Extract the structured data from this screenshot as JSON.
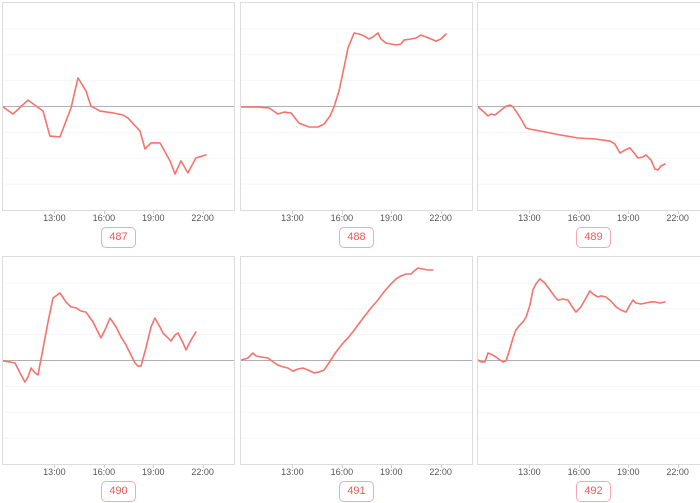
{
  "page": {
    "background": "#ffffff"
  },
  "styles": {
    "line_color": "#f4736d",
    "baseline_color": "#b0b0b0",
    "gridline_color": "#f5f5f5",
    "panel_border_color": "#dcdcdc",
    "tick_mark_color": "#cfcfcf",
    "tick_text_color": "#575353",
    "tag_text_color": "#e85d5d",
    "tag_border_color": "#f4a7b4"
  },
  "x_axis": {
    "tick_labels": [
      "13:00",
      "16:00",
      "19:00",
      "22:00"
    ],
    "tick_hours": [
      13,
      16,
      19,
      22
    ],
    "hour13_x_pct": 22.5,
    "pct_per_hour": 7.07
  },
  "layout_hints": {
    "grid": "2 rows x 3 columns of sparkline panels, third column clipped at right edge",
    "y_axis_labels": "none visible",
    "horizontal_gridlines_every_pct": 12.5,
    "baseline_at_pct": 50
  },
  "chart_data": [
    {
      "type": "line",
      "label": "487",
      "x_unit": "time_of_day_hours",
      "y_unit": "pct_of_panel_height_from_gray_baseline",
      "x_ticks": [
        "13:00",
        "16:00",
        "19:00",
        "22:00"
      ],
      "points": [
        [
          9.8,
          -0.2
        ],
        [
          10.43,
          -3.6
        ],
        [
          11.35,
          3.1
        ],
        [
          12.27,
          -2.2
        ],
        [
          12.69,
          -14.3
        ],
        [
          13.31,
          -14.7
        ],
        [
          13.98,
          -0.7
        ],
        [
          14.41,
          13.8
        ],
        [
          14.9,
          7.5
        ],
        [
          15.2,
          0.2
        ],
        [
          15.76,
          -2.2
        ],
        [
          16.55,
          -3.1
        ],
        [
          17.16,
          -4.1
        ],
        [
          17.47,
          -5.6
        ],
        [
          18.2,
          -11.8
        ],
        [
          18.51,
          -20.5
        ],
        [
          18.88,
          -17.6
        ],
        [
          19.43,
          -17.6
        ],
        [
          20.04,
          -26.3
        ],
        [
          20.35,
          -32.6
        ],
        [
          20.71,
          -26.3
        ],
        [
          21.14,
          -32.1
        ],
        [
          21.63,
          -24.9
        ],
        [
          22.25,
          -23.4
        ]
      ]
    },
    {
      "type": "line",
      "label": "488",
      "x_unit": "time_of_day_hours",
      "y_unit": "pct_of_panel_height_from_gray_baseline",
      "x_ticks": [
        "13:00",
        "16:00",
        "19:00",
        "22:00"
      ],
      "points": [
        [
          9.8,
          -0.2
        ],
        [
          10.73,
          -0.2
        ],
        [
          11.53,
          -0.7
        ],
        [
          12.08,
          -3.6
        ],
        [
          12.45,
          -2.7
        ],
        [
          12.88,
          -3.1
        ],
        [
          13.37,
          -8.0
        ],
        [
          13.98,
          -9.9
        ],
        [
          14.53,
          -9.9
        ],
        [
          14.9,
          -8.5
        ],
        [
          15.27,
          -4.6
        ],
        [
          15.51,
          -0.2
        ],
        [
          15.82,
          7.5
        ],
        [
          16.12,
          18.6
        ],
        [
          16.37,
          28.3
        ],
        [
          16.74,
          35.5
        ],
        [
          17.04,
          35.0
        ],
        [
          17.35,
          34.1
        ],
        [
          17.65,
          32.6
        ],
        [
          17.9,
          33.6
        ],
        [
          18.2,
          35.5
        ],
        [
          18.39,
          32.6
        ],
        [
          18.69,
          30.7
        ],
        [
          19.0,
          30.2
        ],
        [
          19.31,
          29.7
        ],
        [
          19.61,
          30.2
        ],
        [
          19.8,
          32.1
        ],
        [
          20.23,
          32.6
        ],
        [
          20.53,
          33.1
        ],
        [
          20.84,
          34.5
        ],
        [
          21.14,
          33.6
        ],
        [
          21.45,
          32.6
        ],
        [
          21.76,
          31.6
        ],
        [
          22.06,
          32.6
        ],
        [
          22.37,
          35.0
        ]
      ]
    },
    {
      "type": "line",
      "label": "489",
      "x_unit": "time_of_day_hours",
      "y_unit": "pct_of_panel_height_from_gray_baseline",
      "x_ticks": [
        "13:00",
        "16:00",
        "19:00",
        "22:00"
      ],
      "points": [
        [
          9.8,
          -0.2
        ],
        [
          10.12,
          -2.2
        ],
        [
          10.43,
          -4.6
        ],
        [
          10.61,
          -3.6
        ],
        [
          10.86,
          -4.1
        ],
        [
          11.16,
          -2.2
        ],
        [
          11.53,
          0.2
        ],
        [
          11.78,
          0.7
        ],
        [
          11.96,
          -0.2
        ],
        [
          12.14,
          -2.2
        ],
        [
          12.45,
          -6.0
        ],
        [
          12.76,
          -10.4
        ],
        [
          13.0,
          -10.9
        ],
        [
          13.92,
          -12.3
        ],
        [
          14.9,
          -13.8
        ],
        [
          15.94,
          -15.2
        ],
        [
          16.98,
          -15.7
        ],
        [
          17.9,
          -16.7
        ],
        [
          18.2,
          -18.1
        ],
        [
          18.51,
          -22.5
        ],
        [
          18.82,
          -21.0
        ],
        [
          19.12,
          -20.0
        ],
        [
          19.43,
          -23.0
        ],
        [
          19.61,
          -24.9
        ],
        [
          19.92,
          -24.4
        ],
        [
          20.1,
          -23.4
        ],
        [
          20.41,
          -25.9
        ],
        [
          20.65,
          -30.2
        ],
        [
          20.84,
          -30.7
        ],
        [
          21.02,
          -28.7
        ],
        [
          21.27,
          -27.8
        ]
      ]
    },
    {
      "type": "line",
      "label": "490",
      "x_unit": "time_of_day_hours",
      "y_unit": "pct_of_panel_height_from_gray_baseline",
      "x_ticks": [
        "13:00",
        "16:00",
        "19:00",
        "22:00"
      ],
      "points": [
        [
          9.8,
          -0.2
        ],
        [
          10.24,
          -0.7
        ],
        [
          10.55,
          -1.2
        ],
        [
          10.86,
          -6.0
        ],
        [
          11.16,
          -10.4
        ],
        [
          11.35,
          -8.0
        ],
        [
          11.53,
          -3.6
        ],
        [
          11.78,
          -6.0
        ],
        [
          11.96,
          -7.0
        ],
        [
          12.27,
          6.0
        ],
        [
          12.57,
          18.6
        ],
        [
          12.88,
          30.2
        ],
        [
          13.31,
          32.6
        ],
        [
          13.67,
          28.3
        ],
        [
          13.98,
          25.9
        ],
        [
          14.29,
          25.4
        ],
        [
          14.59,
          23.9
        ],
        [
          14.9,
          23.4
        ],
        [
          15.33,
          18.6
        ],
        [
          15.63,
          13.8
        ],
        [
          15.82,
          10.9
        ],
        [
          16.12,
          15.7
        ],
        [
          16.37,
          20.5
        ],
        [
          16.74,
          16.2
        ],
        [
          17.04,
          11.4
        ],
        [
          17.35,
          7.5
        ],
        [
          17.65,
          2.7
        ],
        [
          17.9,
          -1.2
        ],
        [
          18.08,
          -2.7
        ],
        [
          18.27,
          -2.7
        ],
        [
          18.57,
          6.0
        ],
        [
          18.88,
          16.2
        ],
        [
          19.12,
          20.5
        ],
        [
          19.43,
          16.2
        ],
        [
          19.61,
          13.3
        ],
        [
          19.92,
          10.9
        ],
        [
          20.1,
          9.4
        ],
        [
          20.35,
          12.3
        ],
        [
          20.53,
          13.3
        ],
        [
          20.84,
          8.5
        ],
        [
          21.02,
          5.1
        ],
        [
          21.33,
          9.9
        ],
        [
          21.63,
          13.8
        ]
      ]
    },
    {
      "type": "line",
      "label": "491",
      "x_unit": "time_of_day_hours",
      "y_unit": "pct_of_panel_height_from_gray_baseline",
      "x_ticks": [
        "13:00",
        "16:00",
        "19:00",
        "22:00"
      ],
      "points": [
        [
          9.8,
          0.2
        ],
        [
          10.24,
          1.2
        ],
        [
          10.55,
          3.6
        ],
        [
          10.73,
          2.2
        ],
        [
          11.04,
          1.7
        ],
        [
          11.47,
          1.2
        ],
        [
          11.78,
          -0.7
        ],
        [
          12.08,
          -2.2
        ],
        [
          12.39,
          -3.1
        ],
        [
          12.69,
          -3.6
        ],
        [
          13.0,
          -5.1
        ],
        [
          13.31,
          -4.1
        ],
        [
          13.61,
          -3.6
        ],
        [
          13.92,
          -4.6
        ],
        [
          14.29,
          -6.0
        ],
        [
          14.59,
          -5.6
        ],
        [
          14.9,
          -4.6
        ],
        [
          15.2,
          -1.2
        ],
        [
          15.51,
          2.7
        ],
        [
          15.82,
          6.0
        ],
        [
          16.12,
          8.9
        ],
        [
          16.37,
          10.9
        ],
        [
          16.67,
          13.8
        ],
        [
          16.98,
          17.2
        ],
        [
          17.35,
          21.0
        ],
        [
          17.78,
          25.4
        ],
        [
          18.2,
          29.2
        ],
        [
          18.57,
          33.1
        ],
        [
          19.0,
          37.0
        ],
        [
          19.31,
          39.4
        ],
        [
          19.61,
          40.8
        ],
        [
          19.92,
          41.8
        ],
        [
          20.23,
          41.8
        ],
        [
          20.41,
          43.2
        ],
        [
          20.65,
          44.7
        ],
        [
          20.96,
          44.2
        ],
        [
          21.27,
          43.7
        ],
        [
          21.57,
          43.7
        ]
      ]
    },
    {
      "type": "line",
      "label": "492",
      "x_unit": "time_of_day_hours",
      "y_unit": "pct_of_panel_height_from_gray_baseline",
      "x_ticks": [
        "13:00",
        "16:00",
        "19:00",
        "22:00"
      ],
      "points": [
        [
          9.8,
          0.2
        ],
        [
          10.0,
          -0.7
        ],
        [
          10.24,
          -0.7
        ],
        [
          10.43,
          3.6
        ],
        [
          10.61,
          3.1
        ],
        [
          10.92,
          1.7
        ],
        [
          11.16,
          0.2
        ],
        [
          11.35,
          -0.7
        ],
        [
          11.53,
          -0.2
        ],
        [
          11.78,
          6.0
        ],
        [
          11.96,
          10.9
        ],
        [
          12.14,
          14.8
        ],
        [
          12.39,
          17.2
        ],
        [
          12.57,
          18.6
        ],
        [
          12.76,
          21.0
        ],
        [
          13.0,
          26.8
        ],
        [
          13.18,
          34.1
        ],
        [
          13.37,
          37.0
        ],
        [
          13.61,
          39.4
        ],
        [
          13.92,
          37.4
        ],
        [
          14.22,
          34.1
        ],
        [
          14.53,
          30.7
        ],
        [
          14.71,
          29.2
        ],
        [
          15.02,
          29.7
        ],
        [
          15.33,
          29.2
        ],
        [
          15.63,
          25.4
        ],
        [
          15.82,
          23.4
        ],
        [
          16.12,
          25.9
        ],
        [
          16.43,
          30.2
        ],
        [
          16.67,
          33.6
        ],
        [
          16.86,
          32.1
        ],
        [
          17.16,
          30.7
        ],
        [
          17.35,
          31.2
        ],
        [
          17.65,
          30.7
        ],
        [
          17.96,
          28.7
        ],
        [
          18.27,
          25.9
        ],
        [
          18.57,
          24.4
        ],
        [
          18.88,
          23.4
        ],
        [
          19.12,
          26.8
        ],
        [
          19.31,
          29.2
        ],
        [
          19.49,
          27.8
        ],
        [
          19.8,
          27.3
        ],
        [
          20.1,
          27.8
        ],
        [
          20.41,
          28.3
        ],
        [
          20.65,
          28.3
        ],
        [
          20.96,
          27.8
        ],
        [
          21.27,
          28.3
        ]
      ]
    }
  ]
}
